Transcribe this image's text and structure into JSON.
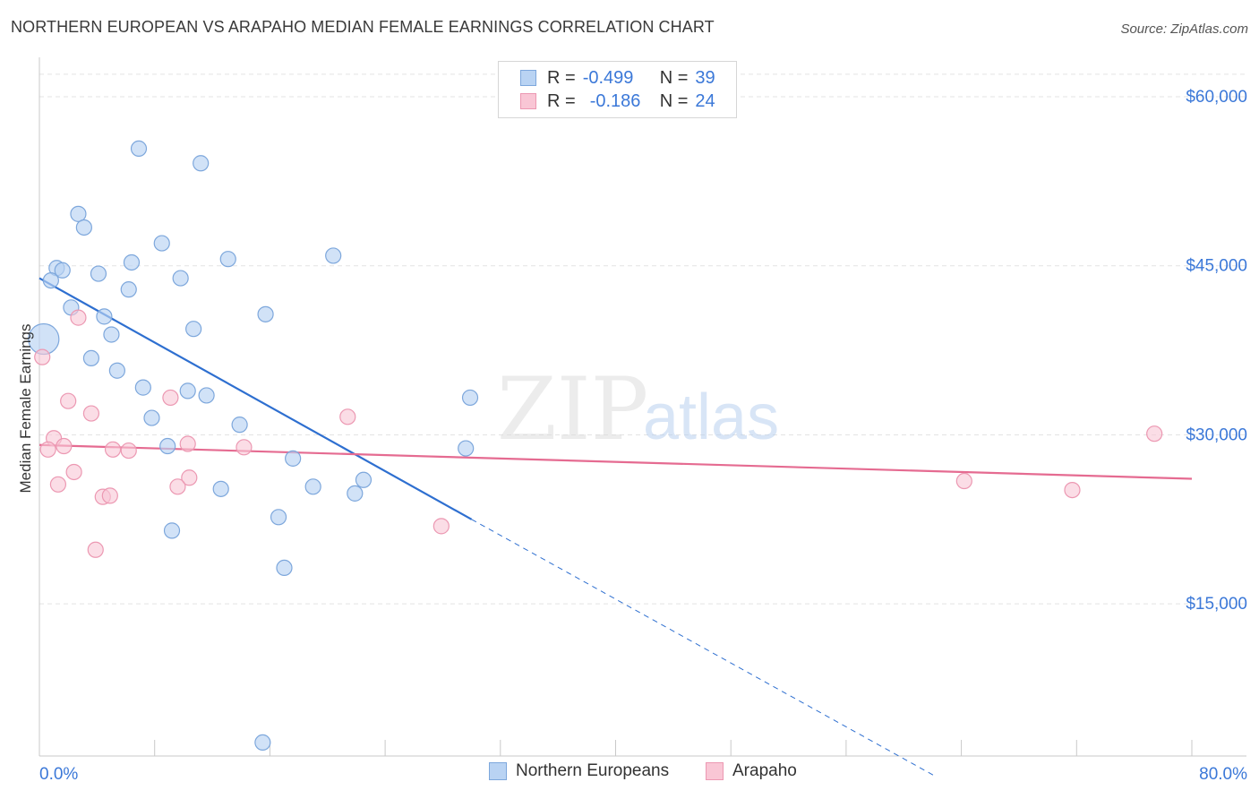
{
  "title": "NORTHERN EUROPEAN VS ARAPAHO MEDIAN FEMALE EARNINGS CORRELATION CHART",
  "source": "Source: ZipAtlas.com",
  "watermark": {
    "zip": "ZIP",
    "atlas": "atlas"
  },
  "legend": {
    "rows": [
      {
        "r_label": "R =",
        "r_value": "-0.499",
        "n_label": "N =",
        "n_value": "39"
      },
      {
        "r_label": "R =",
        "r_value": "-0.186",
        "n_label": "N =",
        "n_value": "24"
      }
    ]
  },
  "bottom_legend": [
    "Northern Europeans",
    "Arapaho"
  ],
  "colors": {
    "blue_fill": "#b9d3f3",
    "blue_stroke": "#7da7dc",
    "blue_line": "#2e6fd0",
    "pink_fill": "#f9c6d5",
    "pink_stroke": "#ec98b2",
    "pink_line": "#e56b91",
    "axis_text": "#3b78d8",
    "grid": "#e3e3e3"
  },
  "chart_data": {
    "type": "scatter",
    "title": "NORTHERN EUROPEAN VS ARAPAHO MEDIAN FEMALE EARNINGS CORRELATION CHART",
    "xlabel": "",
    "ylabel": "Median Female Earnings",
    "xlim": [
      0,
      80
    ],
    "ylim": [
      1500,
      63500
    ],
    "x_tick_labels": [
      "0.0%",
      "80.0%"
    ],
    "y_ticks": [
      15000,
      30000,
      45000,
      60000
    ],
    "y_tick_labels": [
      "$15,000",
      "$30,000",
      "$45,000",
      "$60,000"
    ],
    "grid": true,
    "legend_position": "top-center",
    "series": [
      {
        "name": "Northern Europeans",
        "R": -0.499,
        "N": 39,
        "points": [
          {
            "x": 6.9,
            "y": 55400
          },
          {
            "x": 11.2,
            "y": 54100
          },
          {
            "x": 2.7,
            "y": 49600
          },
          {
            "x": 3.1,
            "y": 48400
          },
          {
            "x": 8.5,
            "y": 47000
          },
          {
            "x": 20.4,
            "y": 45900
          },
          {
            "x": 13.1,
            "y": 45600
          },
          {
            "x": 6.4,
            "y": 45300
          },
          {
            "x": 1.2,
            "y": 44800
          },
          {
            "x": 1.6,
            "y": 44600
          },
          {
            "x": 4.1,
            "y": 44300
          },
          {
            "x": 9.8,
            "y": 43900
          },
          {
            "x": 0.8,
            "y": 43700
          },
          {
            "x": 6.2,
            "y": 42900
          },
          {
            "x": 2.2,
            "y": 41300
          },
          {
            "x": 15.7,
            "y": 40700
          },
          {
            "x": 4.5,
            "y": 40500
          },
          {
            "x": 10.7,
            "y": 39400
          },
          {
            "x": 5.0,
            "y": 38900
          },
          {
            "x": 0.3,
            "y": 38500
          },
          {
            "x": 3.6,
            "y": 36800
          },
          {
            "x": 5.4,
            "y": 35700
          },
          {
            "x": 7.2,
            "y": 34200
          },
          {
            "x": 10.3,
            "y": 33900
          },
          {
            "x": 11.6,
            "y": 33500
          },
          {
            "x": 29.9,
            "y": 33300
          },
          {
            "x": 7.8,
            "y": 31500
          },
          {
            "x": 13.9,
            "y": 30900
          },
          {
            "x": 8.9,
            "y": 29000
          },
          {
            "x": 29.6,
            "y": 28800
          },
          {
            "x": 17.6,
            "y": 27900
          },
          {
            "x": 22.5,
            "y": 26000
          },
          {
            "x": 19.0,
            "y": 25400
          },
          {
            "x": 12.6,
            "y": 25200
          },
          {
            "x": 21.9,
            "y": 24800
          },
          {
            "x": 16.6,
            "y": 22700
          },
          {
            "x": 9.2,
            "y": 21500
          },
          {
            "x": 17.0,
            "y": 18200
          },
          {
            "x": 15.5,
            "y": 2700
          }
        ],
        "trend": {
          "x": [
            0,
            30
          ],
          "y": [
            43900,
            22500
          ]
        },
        "trend_extension": {
          "x": [
            30,
            62.2
          ],
          "y": [
            22500,
            -300
          ]
        }
      },
      {
        "name": "Arapaho",
        "R": -0.186,
        "N": 24,
        "points": [
          {
            "x": 2.7,
            "y": 40400
          },
          {
            "x": 0.2,
            "y": 36900
          },
          {
            "x": 2.0,
            "y": 33000
          },
          {
            "x": 9.1,
            "y": 33300
          },
          {
            "x": 3.6,
            "y": 31900
          },
          {
            "x": 21.4,
            "y": 31600
          },
          {
            "x": 1.0,
            "y": 29700
          },
          {
            "x": 10.3,
            "y": 29200
          },
          {
            "x": 1.7,
            "y": 29000
          },
          {
            "x": 14.2,
            "y": 28900
          },
          {
            "x": 0.6,
            "y": 28700
          },
          {
            "x": 5.1,
            "y": 28700
          },
          {
            "x": 6.2,
            "y": 28600
          },
          {
            "x": 77.4,
            "y": 30100
          },
          {
            "x": 2.4,
            "y": 26700
          },
          {
            "x": 10.4,
            "y": 26200
          },
          {
            "x": 64.2,
            "y": 25900
          },
          {
            "x": 1.3,
            "y": 25600
          },
          {
            "x": 9.6,
            "y": 25400
          },
          {
            "x": 71.7,
            "y": 25100
          },
          {
            "x": 4.4,
            "y": 24500
          },
          {
            "x": 4.9,
            "y": 24600
          },
          {
            "x": 27.9,
            "y": 21900
          },
          {
            "x": 3.9,
            "y": 19800
          }
        ],
        "trend": {
          "x": [
            0,
            80
          ],
          "y": [
            29100,
            26100
          ]
        }
      }
    ]
  }
}
